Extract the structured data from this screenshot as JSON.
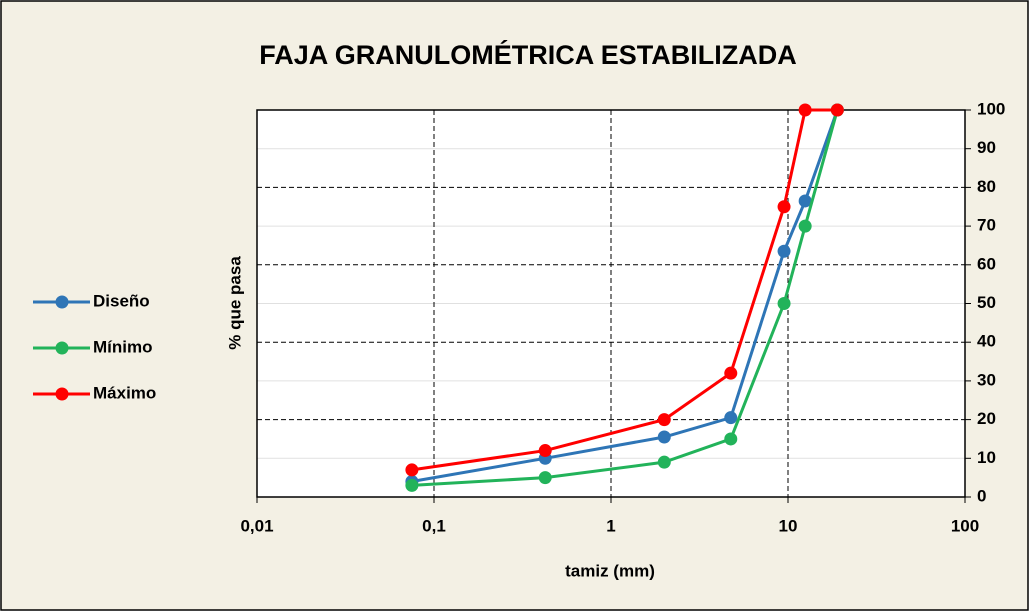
{
  "chart_data": {
    "type": "line",
    "title": "FAJA GRANULOMÉTRICA ESTABILIZADA",
    "x_label": "tamiz (mm)",
    "y_label": "% que pasa",
    "x": [
      0.075,
      0.425,
      2,
      4.75,
      9.5,
      12.5,
      19
    ],
    "series": [
      {
        "name": "Diseño",
        "color": "#2e75b6",
        "values": [
          4,
          10,
          15.5,
          20.5,
          63.5,
          76.5,
          100
        ]
      },
      {
        "name": "Mínimo",
        "color": "#22b35a",
        "values": [
          3,
          5,
          9,
          15,
          50,
          70,
          100
        ]
      },
      {
        "name": "Máximo",
        "color": "#ff0000",
        "values": [
          7,
          12,
          20,
          32,
          75,
          100,
          100
        ]
      }
    ],
    "x_log": true,
    "xlim": [
      0.01,
      100
    ],
    "xticks": [
      {
        "value": 0.01,
        "label": "0,01"
      },
      {
        "value": 0.1,
        "label": "0,1"
      },
      1,
      10,
      100
    ],
    "ylim": [
      0,
      100
    ],
    "yticks": [
      0,
      10,
      20,
      30,
      40,
      50,
      60,
      70,
      80,
      90,
      100
    ],
    "grid": true,
    "legend": "left"
  }
}
